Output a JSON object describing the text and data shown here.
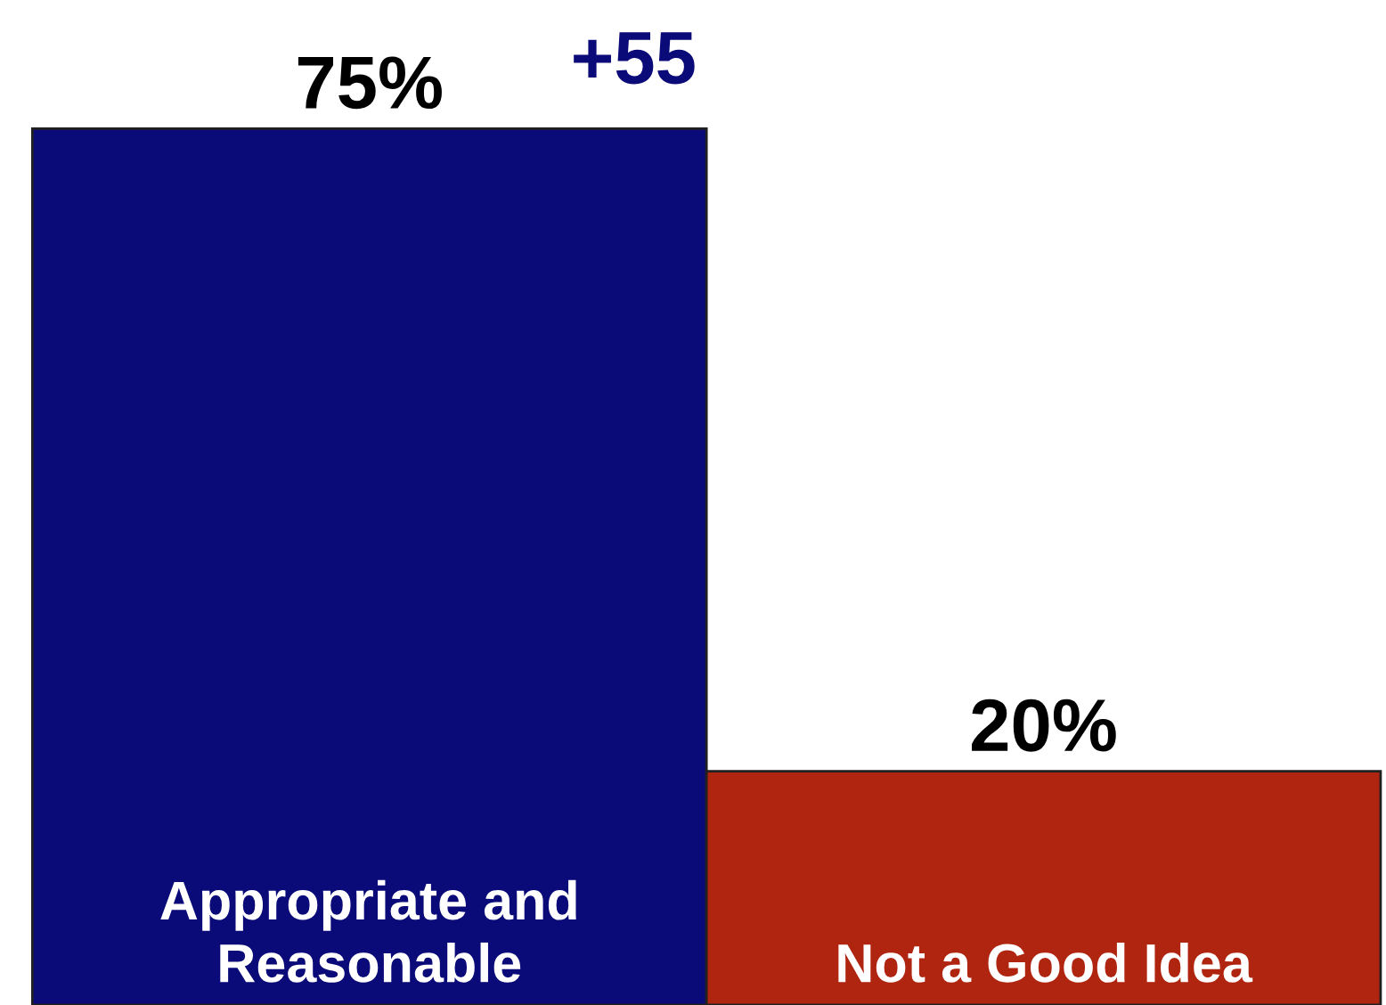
{
  "chart_data": {
    "type": "bar",
    "categories": [
      "Appropriate and Reasonable",
      "Not a Good Idea"
    ],
    "values": [
      75,
      20
    ],
    "colors": [
      "#0a0a78",
      "#b02510"
    ],
    "value_labels": [
      "75%",
      "20%"
    ],
    "ylim": [
      0,
      86
    ],
    "legend": false,
    "annotations": [
      "+55"
    ]
  }
}
